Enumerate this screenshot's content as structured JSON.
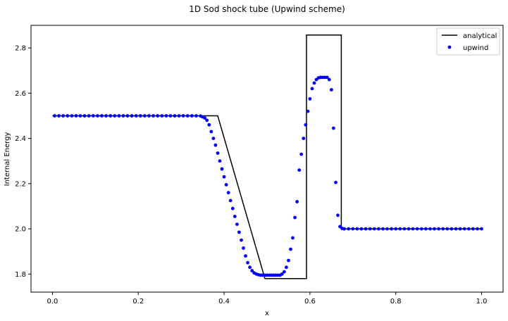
{
  "chart_data": {
    "type": "line+scatter",
    "title": "1D Sod shock tube (Upwind scheme)",
    "xlabel": "x",
    "ylabel": "Internal Energy",
    "xlim": [
      -0.05,
      1.05
    ],
    "ylim": [
      1.72,
      2.9
    ],
    "xticks": [
      "0.0",
      "0.2",
      "0.4",
      "0.6",
      "0.8",
      "1.0"
    ],
    "yticks": [
      "1.8",
      "2.0",
      "2.2",
      "2.4",
      "2.6",
      "2.8"
    ],
    "grid": false,
    "legend_position": "top-right",
    "series": [
      {
        "name": "analytical",
        "style": "line",
        "color": "#000000",
        "x": [
          0.0,
          0.385,
          0.495,
          0.592,
          0.592,
          0.673,
          0.673,
          1.0
        ],
        "y": [
          2.5,
          2.5,
          1.78,
          1.78,
          2.857,
          2.857,
          2.0,
          2.0
        ]
      },
      {
        "name": "upwind",
        "style": "scatter",
        "color": "#0000ff",
        "x": [
          0.005,
          0.015,
          0.025,
          0.035,
          0.045,
          0.055,
          0.065,
          0.075,
          0.085,
          0.095,
          0.105,
          0.115,
          0.125,
          0.135,
          0.145,
          0.155,
          0.165,
          0.175,
          0.185,
          0.195,
          0.205,
          0.215,
          0.225,
          0.235,
          0.245,
          0.255,
          0.265,
          0.275,
          0.285,
          0.295,
          0.305,
          0.315,
          0.325,
          0.335,
          0.345,
          0.35,
          0.355,
          0.36,
          0.365,
          0.37,
          0.375,
          0.38,
          0.385,
          0.39,
          0.395,
          0.4,
          0.405,
          0.41,
          0.415,
          0.42,
          0.425,
          0.43,
          0.435,
          0.44,
          0.445,
          0.45,
          0.455,
          0.46,
          0.465,
          0.47,
          0.475,
          0.48,
          0.485,
          0.49,
          0.495,
          0.5,
          0.505,
          0.51,
          0.515,
          0.52,
          0.525,
          0.53,
          0.535,
          0.54,
          0.545,
          0.55,
          0.555,
          0.56,
          0.565,
          0.57,
          0.575,
          0.58,
          0.585,
          0.59,
          0.595,
          0.6,
          0.605,
          0.61,
          0.615,
          0.62,
          0.625,
          0.63,
          0.635,
          0.64,
          0.645,
          0.65,
          0.655,
          0.66,
          0.665,
          0.67,
          0.675,
          0.68,
          0.69,
          0.7,
          0.71,
          0.72,
          0.73,
          0.74,
          0.75,
          0.76,
          0.77,
          0.78,
          0.79,
          0.8,
          0.81,
          0.82,
          0.83,
          0.84,
          0.85,
          0.86,
          0.87,
          0.88,
          0.89,
          0.9,
          0.91,
          0.92,
          0.93,
          0.94,
          0.95,
          0.96,
          0.97,
          0.98,
          0.99,
          1.0
        ],
        "y": [
          2.5,
          2.5,
          2.5,
          2.5,
          2.5,
          2.5,
          2.5,
          2.5,
          2.5,
          2.5,
          2.5,
          2.5,
          2.5,
          2.5,
          2.5,
          2.5,
          2.5,
          2.5,
          2.5,
          2.5,
          2.5,
          2.5,
          2.5,
          2.5,
          2.5,
          2.5,
          2.5,
          2.5,
          2.5,
          2.5,
          2.5,
          2.5,
          2.5,
          2.5,
          2.499,
          2.495,
          2.49,
          2.48,
          2.46,
          2.43,
          2.4,
          2.37,
          2.335,
          2.3,
          2.265,
          2.23,
          2.195,
          2.16,
          2.125,
          2.09,
          2.055,
          2.02,
          1.985,
          1.95,
          1.915,
          1.88,
          1.85,
          1.83,
          1.815,
          1.805,
          1.8,
          1.797,
          1.795,
          1.795,
          1.795,
          1.795,
          1.795,
          1.795,
          1.795,
          1.795,
          1.795,
          1.795,
          1.8,
          1.81,
          1.83,
          1.86,
          1.91,
          1.96,
          2.05,
          2.12,
          2.26,
          2.33,
          2.4,
          2.46,
          2.52,
          2.575,
          2.62,
          2.645,
          2.66,
          2.668,
          2.67,
          2.67,
          2.67,
          2.67,
          2.66,
          2.615,
          2.445,
          2.205,
          2.06,
          2.01,
          2.002,
          2.0,
          2.0,
          2.0,
          2.0,
          2.0,
          2.0,
          2.0,
          2.0,
          2.0,
          2.0,
          2.0,
          2.0,
          2.0,
          2.0,
          2.0,
          2.0,
          2.0,
          2.0,
          2.0,
          2.0,
          2.0,
          2.0,
          2.0,
          2.0,
          2.0,
          2.0,
          2.0,
          2.0,
          2.0,
          2.0,
          2.0,
          2.0,
          2.0
        ]
      }
    ]
  }
}
